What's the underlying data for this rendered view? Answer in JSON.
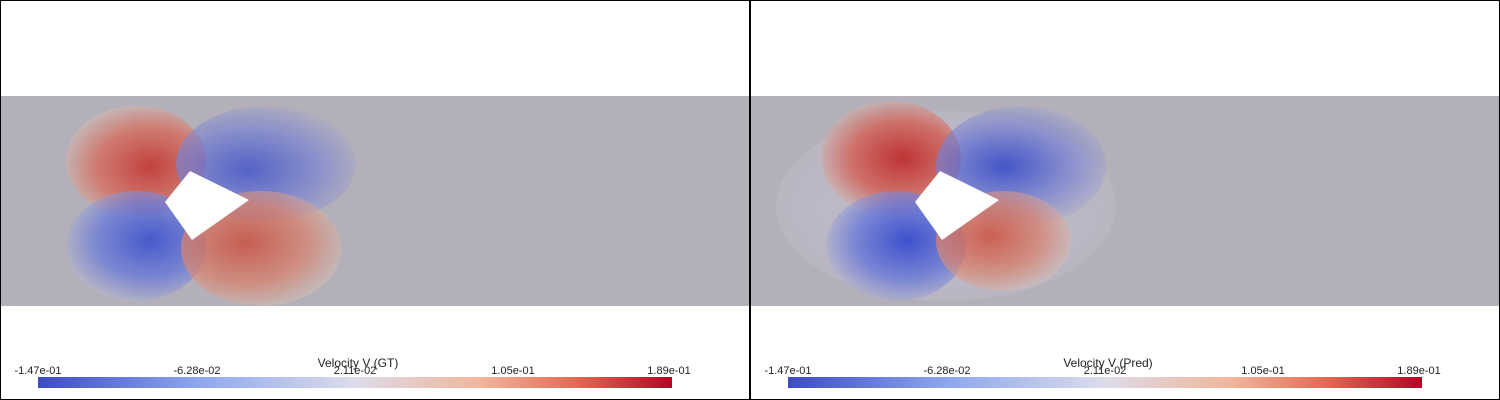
{
  "panels": [
    {
      "id": "gt",
      "colorbar_title": "Velocity V (GT)",
      "ticks": [
        "-1.47e-01",
        "-6.28e-02",
        "2.11e-02",
        "1.05e-01",
        "1.89e-01"
      ]
    },
    {
      "id": "pred",
      "colorbar_title": "Velocity V (Pred)",
      "ticks": [
        "-1.47e-01",
        "-6.28e-02",
        "2.11e-02",
        "1.05e-01",
        "1.89e-01"
      ]
    }
  ],
  "colors": {
    "background_field": "#b3b0ba",
    "min": "#3b4cc0",
    "mid": "#dcdcea",
    "max": "#b40426"
  }
}
